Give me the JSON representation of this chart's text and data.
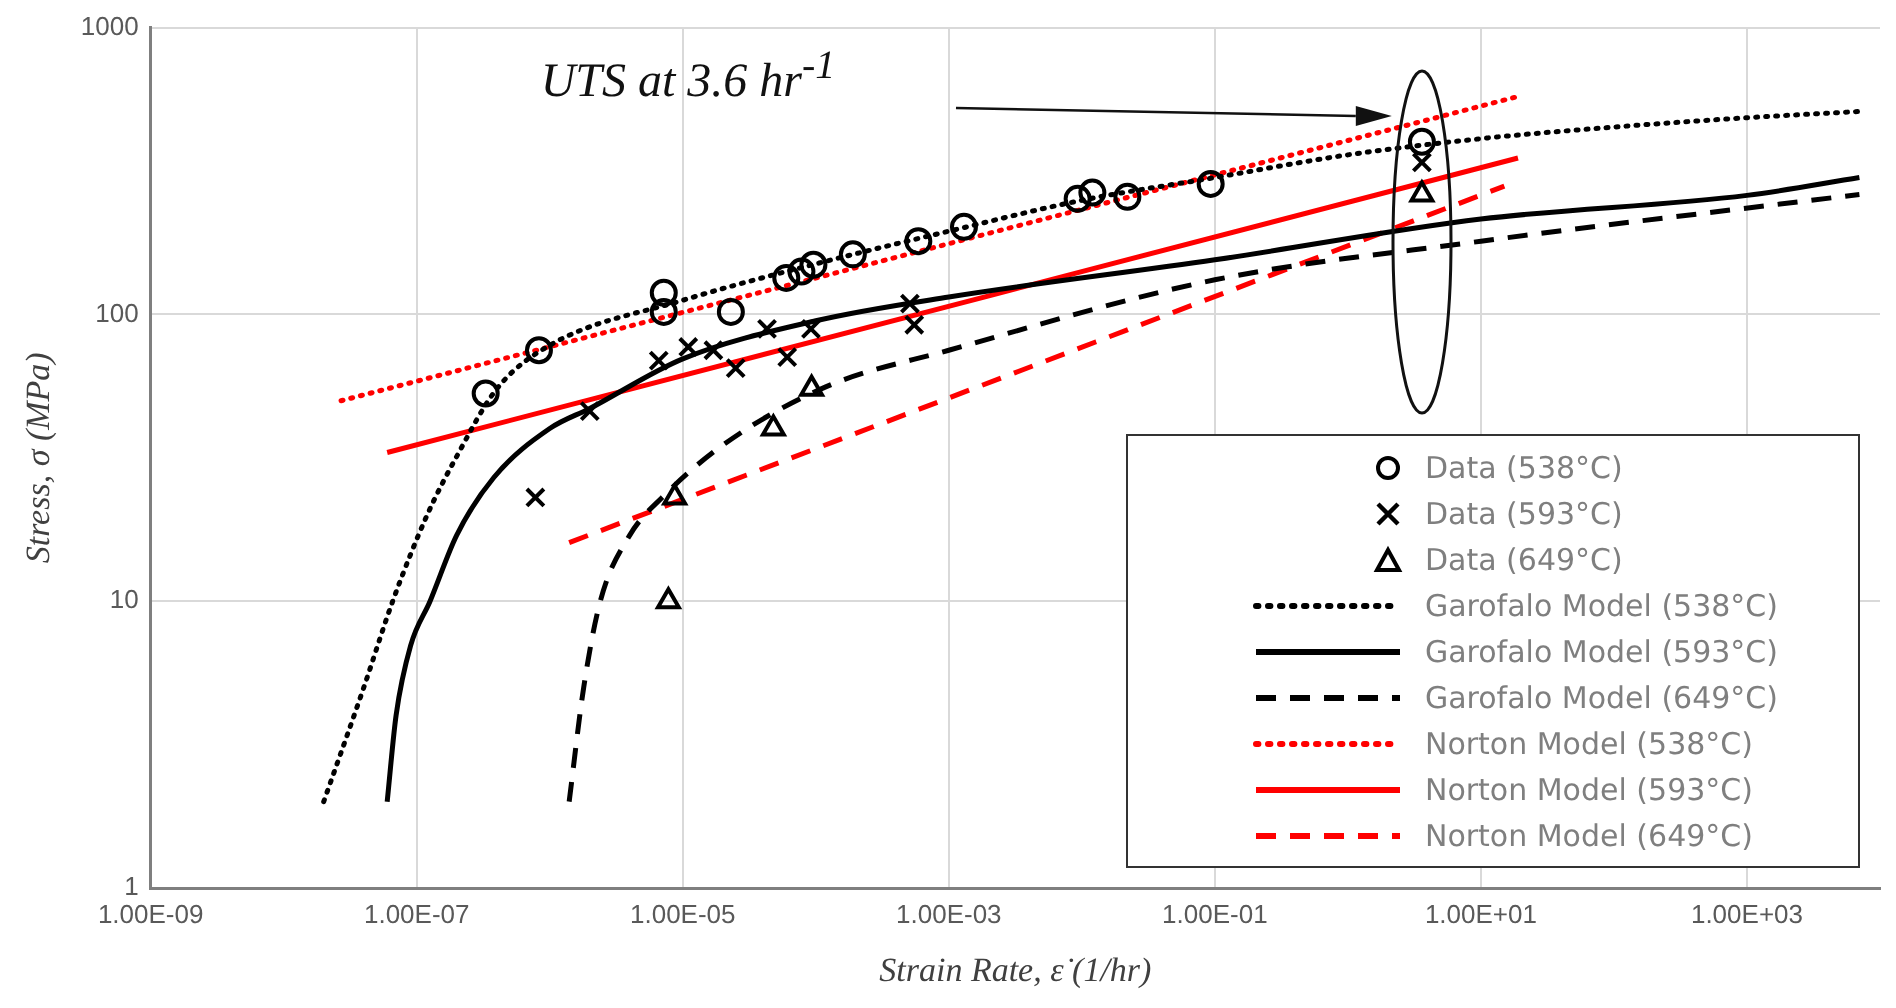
{
  "chart_data": {
    "type": "scatter",
    "xlabel": "Strain Rate, ε̇ (1/hr)",
    "ylabel": "Stress, σ (MPa)",
    "log": "xy",
    "grid": true,
    "legend": "bottom right",
    "xlim": [
      1e-09,
      10000.0
    ],
    "ylim": [
      1,
      1000
    ],
    "xticks": [
      {
        "value": 1e-09,
        "label": "1.00E-09"
      },
      {
        "value": 1e-07,
        "label": "1.00E-07"
      },
      {
        "value": 1e-05,
        "label": "1.00E-05"
      },
      {
        "value": 0.001,
        "label": "1.00E-03"
      },
      {
        "value": 0.1,
        "label": "1.00E-01"
      },
      {
        "value": 10,
        "label": "1.00E+01"
      },
      {
        "value": 1000,
        "label": "1.00E+03"
      }
    ],
    "yticks": [
      1,
      10,
      100,
      1000
    ],
    "annotations": [
      "UTS at 3.6 hr$^{-1}$"
    ],
    "series": [
      {
        "name": "Data (538°C)",
        "type": "scatter",
        "marker": "circle",
        "color": "#000000",
        "x": [
          3.3e-07,
          8.3e-07,
          7.2e-06,
          7.2e-06,
          2.3e-05,
          6e-05,
          7.8e-05,
          9.6e-05,
          0.00019,
          0.00059,
          0.0013,
          0.0093,
          0.012,
          0.022,
          0.093,
          3.6
        ],
        "values": [
          53,
          75,
          119,
          102,
          102,
          134,
          141,
          149,
          162,
          180,
          202,
          253,
          266,
          257,
          285,
          400
        ]
      },
      {
        "name": "Data (593°C)",
        "type": "scatter",
        "marker": "cross",
        "color": "#000000",
        "x": [
          7.8e-07,
          2e-06,
          6.6e-06,
          1.1e-05,
          1.7e-05,
          2.5e-05,
          4.3e-05,
          6.1e-05,
          9.2e-05,
          0.00051,
          0.00055,
          3.6
        ],
        "values": [
          23,
          46,
          69,
          77,
          75,
          65,
          89,
          71,
          89,
          109,
          92,
          339
        ]
      },
      {
        "name": "Data (649°C)",
        "type": "scatter",
        "marker": "triangle",
        "color": "#000000",
        "x": [
          7.8e-06,
          8.7e-06,
          4.8e-05,
          9.3e-05,
          3.6
        ],
        "values": [
          10,
          23,
          40,
          55,
          262
        ]
      },
      {
        "name": "Garofalo Model (538°C)",
        "type": "line",
        "line_style": "dotted",
        "marker": "none",
        "color": "#000000",
        "x": [
          2e-08,
          4e-08,
          6.6e-08,
          1.2e-07,
          2e-07,
          4e-07,
          1e-06,
          1e-05,
          0.0001,
          0.001,
          0.01,
          0.1,
          1,
          10,
          100,
          1000,
          7000
        ],
        "values": [
          2,
          5,
          10,
          20,
          32,
          55,
          78,
          112,
          150,
          195,
          250,
          300,
          360,
          410,
          450,
          485,
          510
        ]
      },
      {
        "name": "Garofalo Model (593°C)",
        "type": "line",
        "line_style": "solid",
        "marker": "none",
        "color": "#000000",
        "x": [
          6e-08,
          7e-08,
          9e-08,
          1.26e-07,
          2e-07,
          3.8e-07,
          1e-06,
          2e-06,
          1e-05,
          0.0001,
          0.001,
          0.1,
          10,
          1000,
          7000
        ],
        "values": [
          2,
          4,
          7,
          10,
          17,
          27,
          40,
          47,
          70,
          95,
          115,
          155,
          215,
          260,
          300
        ]
      },
      {
        "name": "Garofalo Model (649°C)",
        "type": "line",
        "line_style": "dashed",
        "marker": "none",
        "color": "#000000",
        "x": [
          1.4e-06,
          1.8e-06,
          2.4e-06,
          4e-06,
          7e-06,
          2e-05,
          0.00012,
          0.001,
          0.1,
          10,
          7000
        ],
        "values": [
          2,
          5,
          10,
          17,
          23,
          35,
          56,
          75,
          132,
          180,
          262
        ]
      },
      {
        "name": "Norton Model (538°C)",
        "type": "line",
        "line_style": "dotted",
        "marker": "none",
        "color": "#ff0000",
        "x": [
          2.7e-08,
          19
        ],
        "values": [
          50,
          575
        ]
      },
      {
        "name": "Norton Model (593°C)",
        "type": "line",
        "line_style": "solid",
        "marker": "none",
        "color": "#ff0000",
        "x": [
          6e-08,
          19
        ],
        "values": [
          33,
          351
        ]
      },
      {
        "name": "Norton Model (649°C)",
        "type": "line",
        "line_style": "dashed",
        "marker": "none",
        "color": "#ff0000",
        "x": [
          1.4e-06,
          15
        ],
        "values": [
          16,
          280
        ]
      }
    ]
  }
}
